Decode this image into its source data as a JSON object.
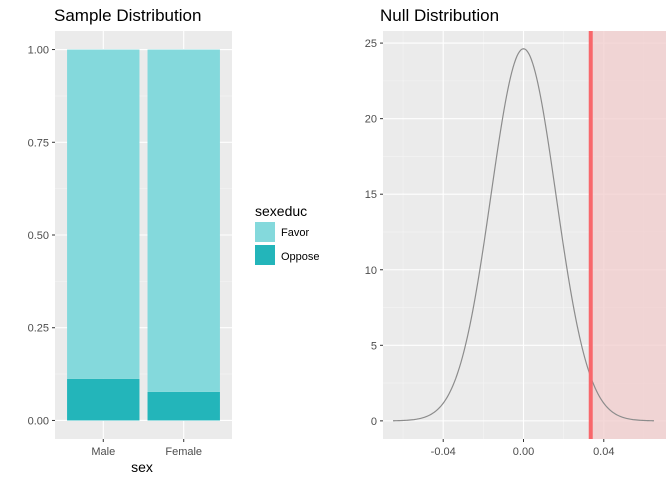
{
  "colors": {
    "panel_bg": "#ebebeb",
    "grid_major": "#ffffff",
    "favor": "#84d9dc",
    "oppose": "#23b5ba",
    "curve": "#8c8c8c",
    "observed_line": "#f8676b",
    "shade": "#f2cccc"
  },
  "chart_data": [
    {
      "type": "bar",
      "stacked": true,
      "title": "Sample Distribution",
      "xlabel": "sex",
      "ylabel": "",
      "categories": [
        "Male",
        "Female"
      ],
      "ylim": [
        0,
        1
      ],
      "y_ticks": [
        0,
        0.25,
        0.5,
        0.75,
        1
      ],
      "y_tick_labels": [
        "0.00",
        "0.25",
        "0.50",
        "0.75",
        "1.00"
      ],
      "legend": {
        "title": "sexeduc",
        "position": "right",
        "entries": [
          "Favor",
          "Oppose"
        ]
      },
      "series": [
        {
          "name": "Oppose",
          "values": [
            0.112,
            0.077
          ]
        },
        {
          "name": "Favor",
          "values": [
            0.888,
            0.923
          ]
        }
      ],
      "grid": true
    },
    {
      "type": "line",
      "title": "Null Distribution",
      "xlabel": "",
      "ylabel": "",
      "xlim": [
        -0.07,
        0.071
      ],
      "ylim": [
        -1.2,
        25.8
      ],
      "x_ticks": [
        -0.04,
        0.0,
        0.04
      ],
      "x_tick_labels": [
        "-0.04",
        "0.00",
        "0.04"
      ],
      "y_ticks": [
        0,
        5,
        10,
        15,
        20,
        25
      ],
      "y_tick_labels": [
        "0",
        "5",
        "10",
        "15",
        "20",
        "25"
      ],
      "curve": {
        "distribution": "normal",
        "mean": 0.0,
        "sd": 0.0162,
        "x_range": [
          -0.065,
          0.065
        ]
      },
      "observed_statistic": 0.0335,
      "shaded_region": [
        0.0335,
        0.071
      ],
      "grid": true
    }
  ]
}
